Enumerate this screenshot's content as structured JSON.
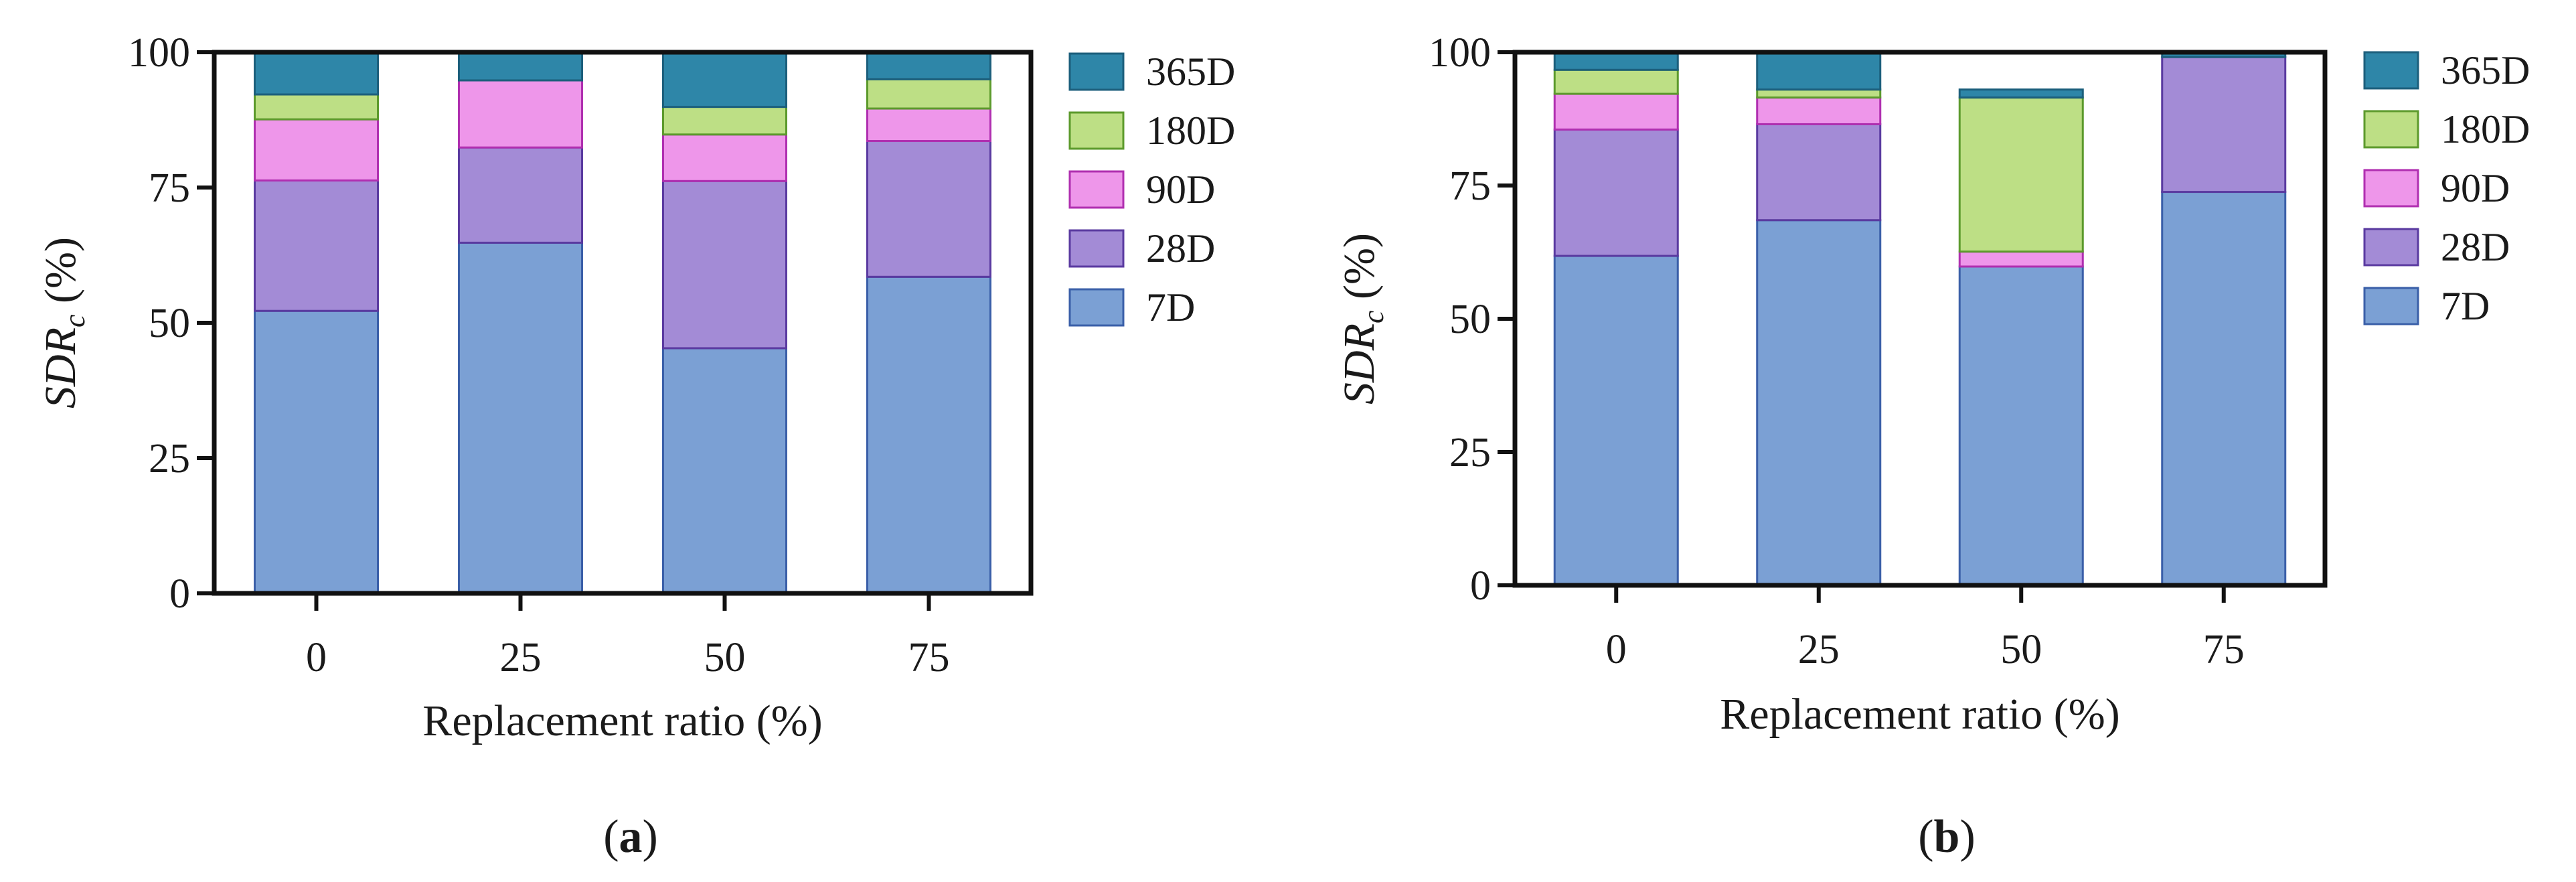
{
  "figure": {
    "panels": [
      {
        "label_open": "(",
        "label_letter": "a",
        "label_close": ")"
      },
      {
        "label_open": "(",
        "label_letter": "b",
        "label_close": ")"
      }
    ]
  },
  "chart_data": [
    {
      "type": "bar",
      "stacked": true,
      "panel": "a",
      "categories": [
        "0",
        "25",
        "50",
        "75"
      ],
      "xlabel": "Replacement ratio (%)",
      "ylabel_main": "SDR",
      "ylabel_sub": "c",
      "ylabel_suffix": " (%)",
      "ylim": [
        0,
        100
      ],
      "yticks": [
        "0",
        "25",
        "50",
        "75",
        "100"
      ],
      "legend_position": "right",
      "series": [
        {
          "name": "7D",
          "color": "#7ba0d4",
          "stroke": "#3a5fa8",
          "values": [
            52.2,
            64.8,
            45.3,
            58.5
          ]
        },
        {
          "name": "28D",
          "color": "#a38bd6",
          "stroke": "#5a3aa0",
          "values": [
            24.1,
            17.6,
            30.9,
            25.1
          ]
        },
        {
          "name": "90D",
          "color": "#ee96ea",
          "stroke": "#b02fb0",
          "values": [
            11.3,
            12.4,
            8.6,
            6.0
          ]
        },
        {
          "name": "180D",
          "color": "#bddf85",
          "stroke": "#5c9a2c",
          "values": [
            4.6,
            0.0,
            5.1,
            5.4
          ]
        },
        {
          "name": "365D",
          "color": "#2e86a8",
          "stroke": "#1c5f7c",
          "values": [
            7.8,
            5.2,
            10.1,
            5.0
          ]
        }
      ]
    },
    {
      "type": "bar",
      "stacked": true,
      "panel": "b",
      "categories": [
        "0",
        "25",
        "50",
        "75"
      ],
      "xlabel": "Replacement ratio (%)",
      "ylabel_main": "SDR",
      "ylabel_sub": "c",
      "ylabel_suffix": " (%)",
      "ylim": [
        0,
        100
      ],
      "yticks": [
        "0",
        "25",
        "50",
        "75",
        "100"
      ],
      "legend_position": "right",
      "series": [
        {
          "name": "7D",
          "color": "#7ba0d4",
          "stroke": "#3a5fa8",
          "values": [
            61.8,
            68.5,
            59.8,
            73.8
          ]
        },
        {
          "name": "28D",
          "color": "#a38bd6",
          "stroke": "#5a3aa0",
          "values": [
            23.7,
            18.0,
            0.0,
            25.3
          ]
        },
        {
          "name": "90D",
          "color": "#ee96ea",
          "stroke": "#b02fb0",
          "values": [
            6.7,
            5.0,
            2.8,
            0.0
          ]
        },
        {
          "name": "180D",
          "color": "#bddf85",
          "stroke": "#5c9a2c",
          "values": [
            4.5,
            1.5,
            28.9,
            0.0
          ]
        },
        {
          "name": "365D",
          "color": "#2e86a8",
          "stroke": "#1c5f7c",
          "values": [
            3.3,
            7.0,
            1.5,
            0.9
          ]
        }
      ]
    }
  ]
}
